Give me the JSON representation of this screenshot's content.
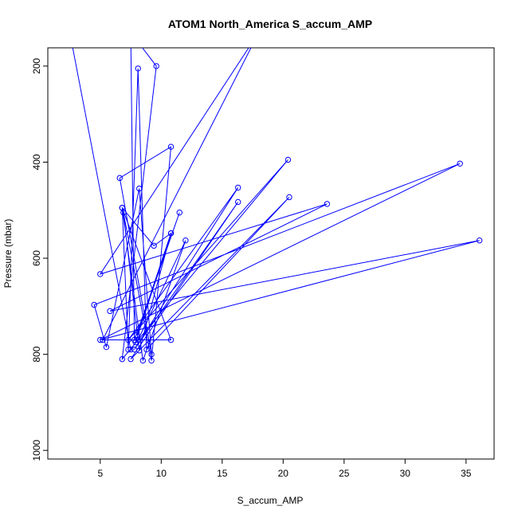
{
  "chart_data": {
    "type": "line",
    "title": "ATOM1 North_America S_accum_AMP",
    "xlabel": "S_accum_AMP",
    "ylabel": "Pressure (mbar)",
    "xlim": [
      0.7,
      37.3
    ],
    "ylim": [
      1018,
      162
    ],
    "y_reversed": true,
    "grid": false,
    "xticks": [
      5,
      10,
      15,
      20,
      25,
      30,
      35
    ],
    "yticks": [
      200,
      400,
      600,
      800,
      1000
    ],
    "series_color": "#0000ff",
    "markers": "open-circle",
    "series": [
      {
        "points": [
          [
            2.5,
            130
          ],
          [
            7.5,
            790
          ],
          [
            7.9,
            775
          ],
          [
            10.8,
            548
          ],
          [
            9.4,
            574
          ],
          [
            6.8,
            495
          ],
          [
            7.3,
            790
          ],
          [
            8.1,
            205
          ],
          [
            8.8,
            790
          ],
          [
            20.5,
            473
          ],
          [
            7.5,
            810
          ],
          [
            16.3,
            483
          ],
          [
            7.8,
            790
          ],
          [
            16.3,
            453
          ],
          [
            7.3,
            770
          ],
          [
            20.4,
            395
          ],
          [
            6.8,
            810
          ],
          [
            9.6,
            200
          ],
          [
            7.5,
            130
          ],
          [
            7.8,
            770
          ],
          [
            11.5,
            505
          ],
          [
            8.0,
            760
          ],
          [
            10.8,
            548
          ],
          [
            8.2,
            792
          ],
          [
            6.9,
            505
          ],
          [
            9.2,
            813
          ],
          [
            10.8,
            368
          ],
          [
            6.6,
            433
          ],
          [
            9.2,
            800
          ],
          [
            8.2,
            455
          ],
          [
            5.5,
            785
          ],
          [
            4.5,
            697
          ],
          [
            34.5,
            403
          ],
          [
            5.0,
            770
          ],
          [
            36.1,
            563
          ],
          [
            5.8,
            710
          ],
          [
            23.6,
            487
          ],
          [
            5.0,
            633
          ],
          [
            18.0,
            130
          ],
          [
            5.2,
            770
          ],
          [
            10.8,
            770
          ],
          [
            6.8,
            495
          ],
          [
            8.5,
            813
          ],
          [
            12.0,
            563
          ],
          [
            8.1,
            770
          ]
        ]
      }
    ]
  }
}
